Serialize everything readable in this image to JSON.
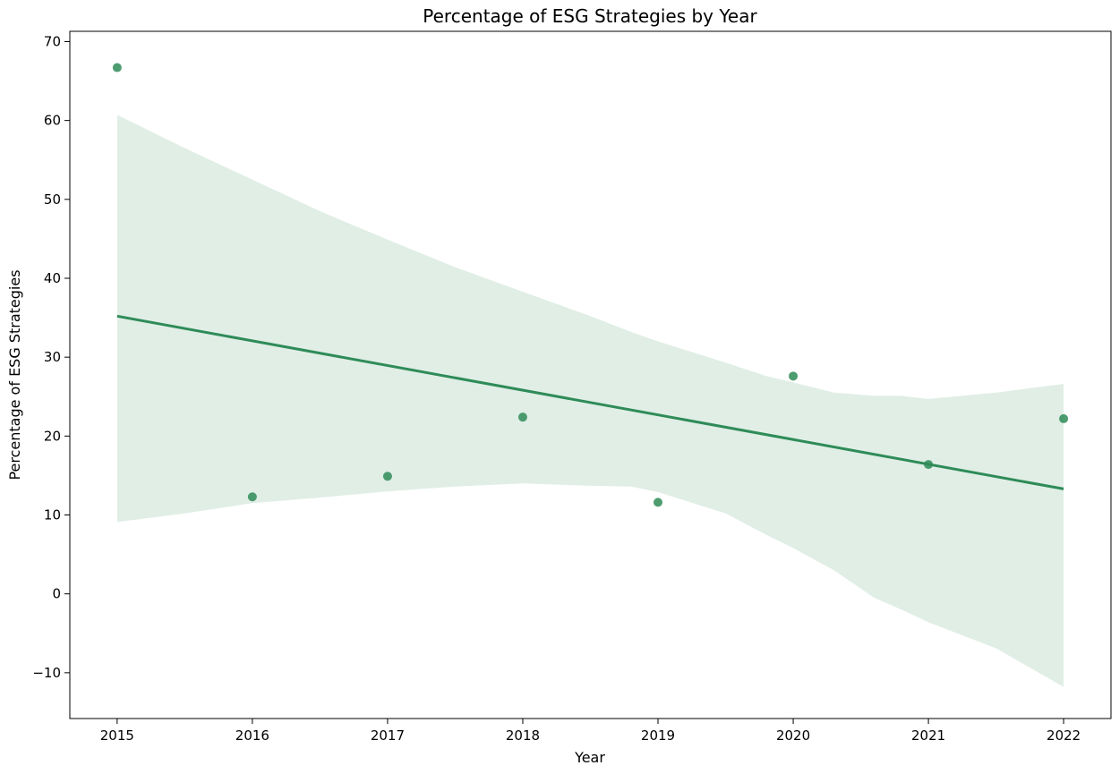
{
  "chart_data": {
    "type": "scatter",
    "title": "Percentage of ESG Strategies by Year",
    "xlabel": "Year",
    "ylabel": "Percentage of ESG Strategies",
    "xlim": [
      2014.65,
      2022.35
    ],
    "ylim": [
      -15.8,
      71.3
    ],
    "xticks": [
      2015,
      2016,
      2017,
      2018,
      2019,
      2020,
      2021,
      2022
    ],
    "yticks": [
      -10,
      0,
      10,
      20,
      30,
      40,
      50,
      60,
      70
    ],
    "ytick_labels": [
      "−10",
      "0",
      "10",
      "20",
      "30",
      "40",
      "50",
      "60",
      "70"
    ],
    "grid": false,
    "legend": "none",
    "colors": {
      "points": "#2e8b57",
      "line": "#2e8b57",
      "band": "#2e8b57"
    },
    "series": [
      {
        "x": [
          2015,
          2016,
          2017,
          2018,
          2019,
          2020,
          2021,
          2022
        ],
        "y": [
          66.7,
          12.3,
          14.9,
          22.4,
          11.6,
          27.6,
          16.4,
          22.2
        ]
      }
    ],
    "regression": {
      "x": [
        2015,
        2022
      ],
      "y": [
        35.2,
        13.3
      ]
    },
    "confidence_band": {
      "x": [
        2015,
        2015.5,
        2016,
        2016.5,
        2017,
        2017.5,
        2018,
        2018.5,
        2018.8,
        2019,
        2019.5,
        2019.8,
        2020,
        2020.3,
        2020.6,
        2020.8,
        2021,
        2021.5,
        2022
      ],
      "upper": [
        60.7,
        56.5,
        52.5,
        48.5,
        44.9,
        41.4,
        38.3,
        35.2,
        33.2,
        32.0,
        29.3,
        27.6,
        26.8,
        25.5,
        25.1,
        25.1,
        24.7,
        25.5,
        26.6
      ],
      "lower": [
        9.1,
        10.2,
        11.5,
        12.2,
        13.0,
        13.6,
        14.0,
        13.7,
        13.6,
        12.9,
        10.2,
        7.5,
        5.8,
        3.0,
        -0.5,
        -2.0,
        -3.6,
        -6.9,
        -11.8
      ]
    }
  }
}
